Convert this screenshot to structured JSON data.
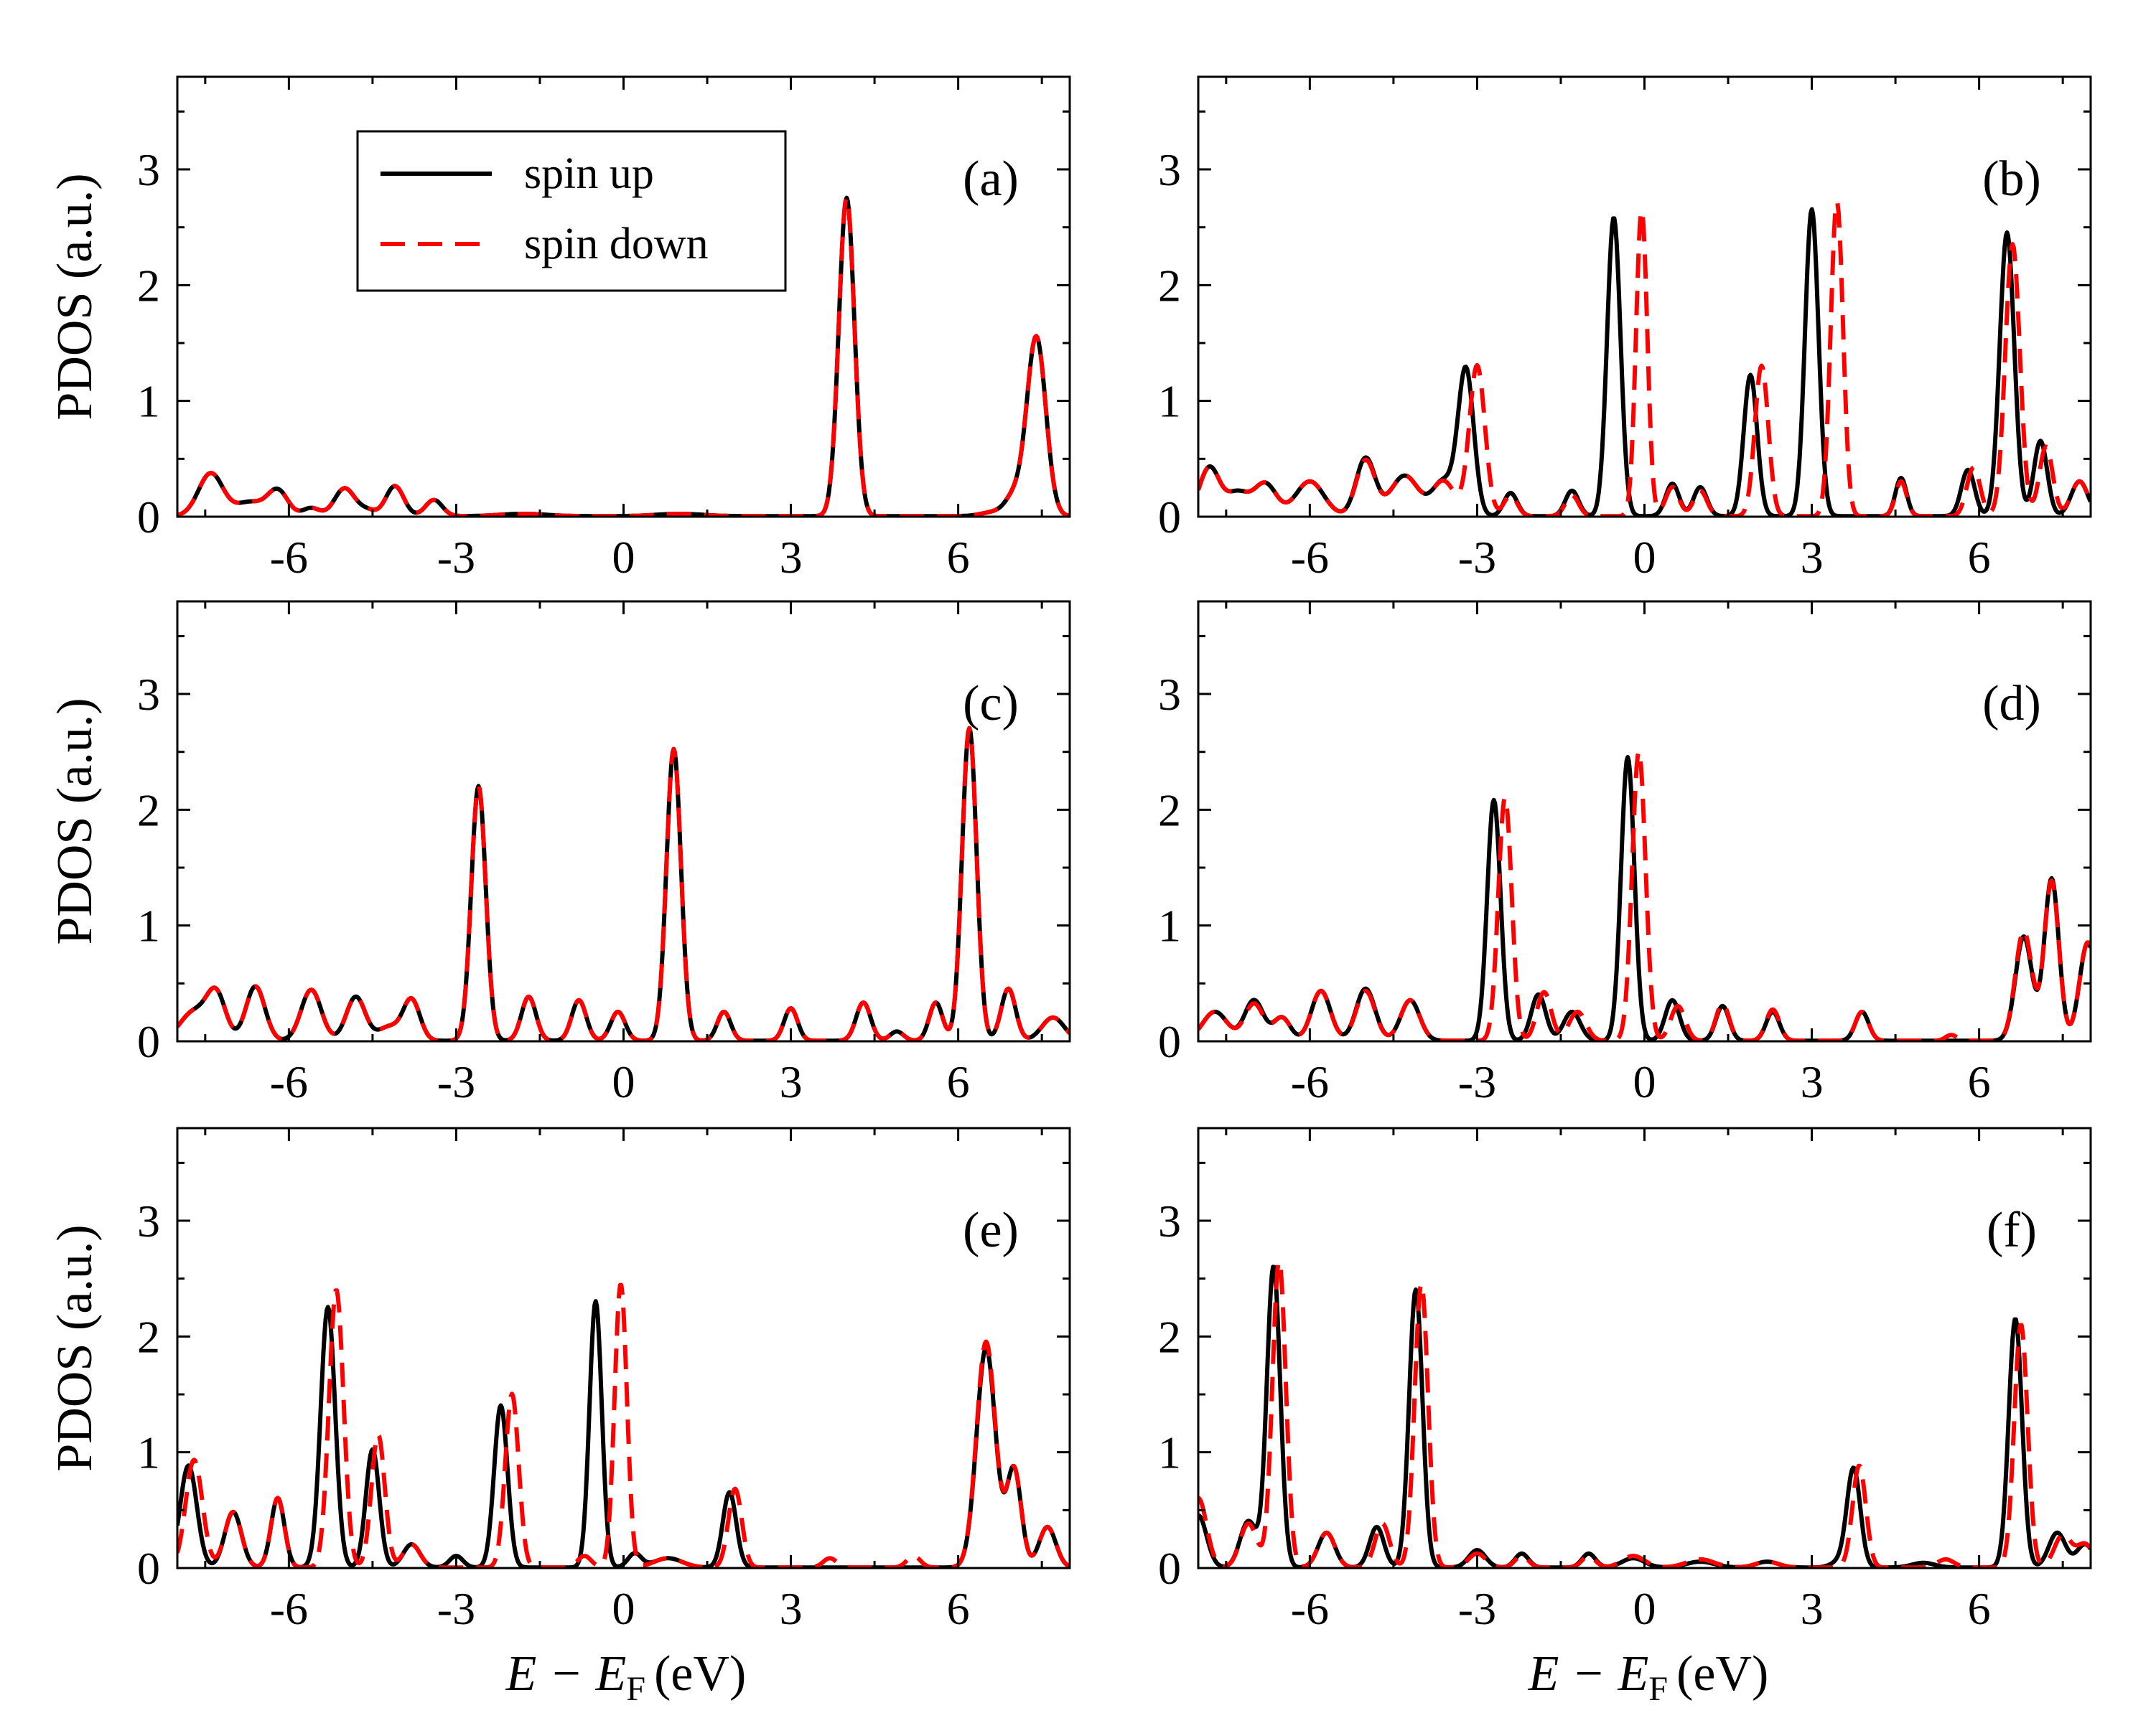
{
  "colors": {
    "spin_up": "#000000",
    "spin_down": "#ff0000"
  },
  "legend": {
    "spin_up": "spin up",
    "spin_down": "spin down"
  },
  "axes": {
    "ylabel": "PDOS (a.u.)",
    "xlabel_main": "E − E",
    "xlabel_sub": "F",
    "xlabel_unit": "(eV)"
  },
  "chart_data": [
    {
      "type": "line",
      "panel": "(a)",
      "xlim": [
        -8,
        8
      ],
      "ylim": [
        0,
        3.8
      ],
      "xticks": [
        -6,
        -3,
        0,
        3,
        6
      ],
      "yticks": [
        0,
        1,
        2,
        3
      ],
      "peaks_up": [
        [
          -7.4,
          0.37,
          0.22
        ],
        [
          -6.7,
          0.12,
          0.25
        ],
        [
          -6.2,
          0.22,
          0.18
        ],
        [
          -5.6,
          0.07,
          0.15
        ],
        [
          -5.0,
          0.24,
          0.18
        ],
        [
          -4.6,
          0.05,
          0.15
        ],
        [
          -4.1,
          0.26,
          0.16
        ],
        [
          -3.4,
          0.14,
          0.15
        ],
        [
          -1.8,
          0.02,
          0.4
        ],
        [
          1.0,
          0.02,
          0.4
        ],
        [
          4.0,
          2.75,
          0.14
        ],
        [
          6.7,
          0.04,
          0.25
        ],
        [
          7.4,
          1.55,
          0.17
        ],
        [
          7.0,
          0.15,
          0.15
        ]
      ],
      "peaks_down": [
        [
          -7.4,
          0.37,
          0.22
        ],
        [
          -6.7,
          0.12,
          0.25
        ],
        [
          -6.2,
          0.22,
          0.18
        ],
        [
          -5.6,
          0.07,
          0.15
        ],
        [
          -5.0,
          0.24,
          0.18
        ],
        [
          -4.6,
          0.05,
          0.15
        ],
        [
          -4.1,
          0.26,
          0.16
        ],
        [
          -3.4,
          0.14,
          0.15
        ],
        [
          -1.8,
          0.02,
          0.4
        ],
        [
          1.0,
          0.02,
          0.4
        ],
        [
          4.0,
          2.75,
          0.14
        ],
        [
          6.7,
          0.04,
          0.25
        ],
        [
          7.4,
          1.55,
          0.17
        ],
        [
          7.0,
          0.15,
          0.15
        ]
      ],
      "series": [
        {
          "name": "spin up"
        },
        {
          "name": "spin down"
        }
      ]
    },
    {
      "type": "line",
      "panel": "(b)",
      "xlim": [
        -8,
        8
      ],
      "ylim": [
        0,
        3.8
      ],
      "xticks": [
        -6,
        -3,
        0,
        3,
        6
      ],
      "yticks": [
        0,
        1,
        2,
        3
      ],
      "peaks_up": [
        [
          -7.8,
          0.42,
          0.18
        ],
        [
          -7.3,
          0.2,
          0.2
        ],
        [
          -6.8,
          0.28,
          0.2
        ],
        [
          -6.0,
          0.3,
          0.25
        ],
        [
          -5.0,
          0.5,
          0.17
        ],
        [
          -4.3,
          0.35,
          0.25
        ],
        [
          -3.6,
          0.3,
          0.2
        ],
        [
          -3.2,
          1.25,
          0.14
        ],
        [
          -2.4,
          0.2,
          0.12
        ],
        [
          -1.3,
          0.22,
          0.12
        ],
        [
          -0.55,
          2.58,
          0.12
        ],
        [
          0.5,
          0.28,
          0.12
        ],
        [
          1.0,
          0.25,
          0.12
        ],
        [
          1.9,
          1.22,
          0.12
        ],
        [
          3.0,
          2.65,
          0.12
        ],
        [
          4.6,
          0.33,
          0.1
        ],
        [
          5.8,
          0.4,
          0.12
        ],
        [
          6.5,
          2.45,
          0.13
        ],
        [
          7.1,
          0.65,
          0.12
        ],
        [
          7.8,
          0.3,
          0.15
        ]
      ],
      "peaks_down": [
        [
          -7.8,
          0.42,
          0.18
        ],
        [
          -7.3,
          0.2,
          0.2
        ],
        [
          -6.8,
          0.28,
          0.2
        ],
        [
          -6.0,
          0.3,
          0.25
        ],
        [
          -5.0,
          0.48,
          0.17
        ],
        [
          -4.3,
          0.35,
          0.25
        ],
        [
          -3.6,
          0.3,
          0.2
        ],
        [
          -3.0,
          1.3,
          0.14
        ],
        [
          -2.4,
          0.18,
          0.12
        ],
        [
          -1.3,
          0.18,
          0.12
        ],
        [
          -0.05,
          2.65,
          0.1
        ],
        [
          0.5,
          0.25,
          0.12
        ],
        [
          1.0,
          0.22,
          0.12
        ],
        [
          2.1,
          1.3,
          0.12
        ],
        [
          3.45,
          2.72,
          0.11
        ],
        [
          4.6,
          0.3,
          0.1
        ],
        [
          5.9,
          0.42,
          0.12
        ],
        [
          6.6,
          2.35,
          0.13
        ],
        [
          7.2,
          0.6,
          0.12
        ],
        [
          7.8,
          0.3,
          0.15
        ]
      ],
      "series": [
        {
          "name": "spin up"
        },
        {
          "name": "spin down"
        }
      ]
    },
    {
      "type": "line",
      "panel": "(c)",
      "xlim": [
        -8,
        8
      ],
      "ylim": [
        0,
        3.8
      ],
      "xticks": [
        -6,
        -3,
        0,
        3,
        6
      ],
      "yticks": [
        0,
        1,
        2,
        3
      ],
      "peaks_up": [
        [
          -7.7,
          0.25,
          0.25
        ],
        [
          -7.3,
          0.38,
          0.17
        ],
        [
          -6.6,
          0.47,
          0.17
        ],
        [
          -5.6,
          0.44,
          0.18
        ],
        [
          -4.8,
          0.38,
          0.17
        ],
        [
          -4.2,
          0.12,
          0.2
        ],
        [
          -3.8,
          0.35,
          0.15
        ],
        [
          -2.6,
          2.2,
          0.13
        ],
        [
          -1.7,
          0.38,
          0.13
        ],
        [
          -0.8,
          0.35,
          0.13
        ],
        [
          -0.1,
          0.25,
          0.13
        ],
        [
          0.9,
          2.52,
          0.13
        ],
        [
          1.8,
          0.25,
          0.12
        ],
        [
          3.0,
          0.28,
          0.12
        ],
        [
          4.3,
          0.33,
          0.13
        ],
        [
          4.9,
          0.08,
          0.12
        ],
        [
          5.6,
          0.33,
          0.12
        ],
        [
          6.2,
          2.7,
          0.13
        ],
        [
          6.9,
          0.45,
          0.13
        ],
        [
          7.7,
          0.2,
          0.2
        ]
      ],
      "peaks_down": [
        [
          -7.7,
          0.25,
          0.25
        ],
        [
          -7.3,
          0.38,
          0.17
        ],
        [
          -6.6,
          0.47,
          0.17
        ],
        [
          -5.6,
          0.44,
          0.18
        ],
        [
          -4.8,
          0.38,
          0.17
        ],
        [
          -4.2,
          0.12,
          0.2
        ],
        [
          -3.8,
          0.35,
          0.15
        ],
        [
          -2.6,
          2.2,
          0.13
        ],
        [
          -1.7,
          0.38,
          0.13
        ],
        [
          -0.8,
          0.35,
          0.13
        ],
        [
          -0.1,
          0.25,
          0.13
        ],
        [
          0.9,
          2.52,
          0.13
        ],
        [
          1.8,
          0.25,
          0.12
        ],
        [
          3.0,
          0.28,
          0.12
        ],
        [
          4.3,
          0.33,
          0.13
        ],
        [
          4.9,
          0.08,
          0.12
        ],
        [
          5.6,
          0.33,
          0.12
        ],
        [
          6.2,
          2.7,
          0.13
        ],
        [
          6.9,
          0.45,
          0.13
        ],
        [
          7.7,
          0.2,
          0.2
        ]
      ],
      "series": [
        {
          "name": "spin up"
        },
        {
          "name": "spin down"
        }
      ]
    },
    {
      "type": "line",
      "panel": "(d)",
      "xlim": [
        -8,
        8
      ],
      "ylim": [
        0,
        3.8
      ],
      "xticks": [
        -6,
        -3,
        0,
        3,
        6
      ],
      "yticks": [
        0,
        1,
        2,
        3
      ],
      "peaks_up": [
        [
          -7.7,
          0.25,
          0.22
        ],
        [
          -7.0,
          0.35,
          0.17
        ],
        [
          -6.5,
          0.2,
          0.15
        ],
        [
          -5.8,
          0.43,
          0.17
        ],
        [
          -5.0,
          0.45,
          0.17
        ],
        [
          -4.2,
          0.35,
          0.17
        ],
        [
          -2.7,
          2.08,
          0.12
        ],
        [
          -1.9,
          0.4,
          0.13
        ],
        [
          -1.3,
          0.25,
          0.15
        ],
        [
          -0.3,
          2.45,
          0.12
        ],
        [
          0.5,
          0.35,
          0.13
        ],
        [
          1.4,
          0.3,
          0.12
        ],
        [
          2.3,
          0.25,
          0.12
        ],
        [
          3.9,
          0.25,
          0.12
        ],
        [
          6.8,
          0.9,
          0.15
        ],
        [
          7.3,
          1.4,
          0.13
        ],
        [
          7.95,
          0.85,
          0.15
        ]
      ],
      "peaks_down": [
        [
          -7.7,
          0.25,
          0.22
        ],
        [
          -7.0,
          0.32,
          0.17
        ],
        [
          -6.5,
          0.2,
          0.15
        ],
        [
          -5.8,
          0.43,
          0.17
        ],
        [
          -5.0,
          0.43,
          0.17
        ],
        [
          -4.2,
          0.35,
          0.17
        ],
        [
          -2.5,
          2.1,
          0.12
        ],
        [
          -1.8,
          0.42,
          0.13
        ],
        [
          -1.2,
          0.25,
          0.15
        ],
        [
          -0.1,
          2.5,
          0.12
        ],
        [
          0.6,
          0.3,
          0.13
        ],
        [
          1.4,
          0.32,
          0.12
        ],
        [
          2.3,
          0.27,
          0.12
        ],
        [
          3.9,
          0.25,
          0.12
        ],
        [
          5.5,
          0.05,
          0.1
        ],
        [
          6.8,
          0.95,
          0.15
        ],
        [
          7.3,
          1.38,
          0.13
        ],
        [
          7.95,
          0.85,
          0.15
        ]
      ],
      "series": [
        {
          "name": "spin up"
        },
        {
          "name": "spin down"
        }
      ]
    },
    {
      "type": "line",
      "panel": "(e)",
      "xlim": [
        -8,
        8
      ],
      "ylim": [
        0,
        3.8
      ],
      "xticks": [
        -6,
        -3,
        0,
        3,
        6
      ],
      "yticks": [
        0,
        1,
        2,
        3
      ],
      "peaks_up": [
        [
          -7.8,
          0.88,
          0.15
        ],
        [
          -7.0,
          0.48,
          0.15
        ],
        [
          -6.2,
          0.6,
          0.12
        ],
        [
          -5.3,
          2.25,
          0.13
        ],
        [
          -4.5,
          1.02,
          0.12
        ],
        [
          -3.8,
          0.2,
          0.15
        ],
        [
          -3.0,
          0.1,
          0.12
        ],
        [
          -2.2,
          1.4,
          0.12
        ],
        [
          -0.5,
          2.3,
          0.11
        ],
        [
          0.2,
          0.12,
          0.12
        ],
        [
          0.8,
          0.08,
          0.25
        ],
        [
          1.9,
          0.65,
          0.12
        ],
        [
          6.5,
          1.9,
          0.17
        ],
        [
          7.0,
          0.85,
          0.13
        ],
        [
          7.6,
          0.35,
          0.15
        ]
      ],
      "peaks_down": [
        [
          -7.7,
          0.93,
          0.15
        ],
        [
          -7.0,
          0.48,
          0.15
        ],
        [
          -6.2,
          0.6,
          0.12
        ],
        [
          -5.15,
          2.4,
          0.13
        ],
        [
          -4.4,
          1.15,
          0.12
        ],
        [
          -3.8,
          0.2,
          0.15
        ],
        [
          -2.0,
          1.5,
          0.12
        ],
        [
          -0.7,
          0.1,
          0.12
        ],
        [
          -0.05,
          2.45,
          0.11
        ],
        [
          0.8,
          0.08,
          0.25
        ],
        [
          2.0,
          0.68,
          0.12
        ],
        [
          3.7,
          0.08,
          0.12
        ],
        [
          5.2,
          0.1,
          0.12
        ],
        [
          6.5,
          1.95,
          0.17
        ],
        [
          7.0,
          0.85,
          0.13
        ],
        [
          7.6,
          0.35,
          0.15
        ]
      ],
      "series": [
        {
          "name": "spin up"
        },
        {
          "name": "spin down"
        }
      ]
    },
    {
      "type": "line",
      "panel": "(f)",
      "xlim": [
        -8,
        8
      ],
      "ylim": [
        0,
        3.8
      ],
      "xticks": [
        -6,
        -3,
        0,
        3,
        6
      ],
      "yticks": [
        0,
        1,
        2,
        3
      ],
      "peaks_up": [
        [
          -8.0,
          0.45,
          0.15
        ],
        [
          -7.1,
          0.4,
          0.15
        ],
        [
          -6.65,
          2.6,
          0.12
        ],
        [
          -5.7,
          0.3,
          0.15
        ],
        [
          -4.8,
          0.35,
          0.13
        ],
        [
          -4.1,
          2.4,
          0.12
        ],
        [
          -3.0,
          0.15,
          0.15
        ],
        [
          -2.2,
          0.12,
          0.12
        ],
        [
          -1.0,
          0.12,
          0.12
        ],
        [
          -0.2,
          0.08,
          0.2
        ],
        [
          1.0,
          0.05,
          0.25
        ],
        [
          2.2,
          0.05,
          0.2
        ],
        [
          3.5,
          0.05,
          0.15
        ],
        [
          3.75,
          0.85,
          0.12
        ],
        [
          5.0,
          0.04,
          0.2
        ],
        [
          6.65,
          2.15,
          0.12
        ],
        [
          7.4,
          0.3,
          0.15
        ],
        [
          7.9,
          0.2,
          0.15
        ]
      ],
      "peaks_down": [
        [
          -8.0,
          0.6,
          0.15
        ],
        [
          -7.1,
          0.38,
          0.15
        ],
        [
          -6.55,
          2.65,
          0.12
        ],
        [
          -5.7,
          0.3,
          0.15
        ],
        [
          -4.7,
          0.38,
          0.13
        ],
        [
          -4.0,
          2.45,
          0.12
        ],
        [
          -3.0,
          0.12,
          0.15
        ],
        [
          -2.2,
          0.1,
          0.12
        ],
        [
          -1.0,
          0.1,
          0.12
        ],
        [
          -0.2,
          0.1,
          0.2
        ],
        [
          1.0,
          0.07,
          0.25
        ],
        [
          2.2,
          0.05,
          0.2
        ],
        [
          3.85,
          0.88,
          0.12
        ],
        [
          5.4,
          0.07,
          0.15
        ],
        [
          6.75,
          2.1,
          0.12
        ],
        [
          7.5,
          0.28,
          0.15
        ],
        [
          7.9,
          0.2,
          0.15
        ]
      ],
      "series": [
        {
          "name": "spin up"
        },
        {
          "name": "spin down"
        }
      ]
    }
  ]
}
